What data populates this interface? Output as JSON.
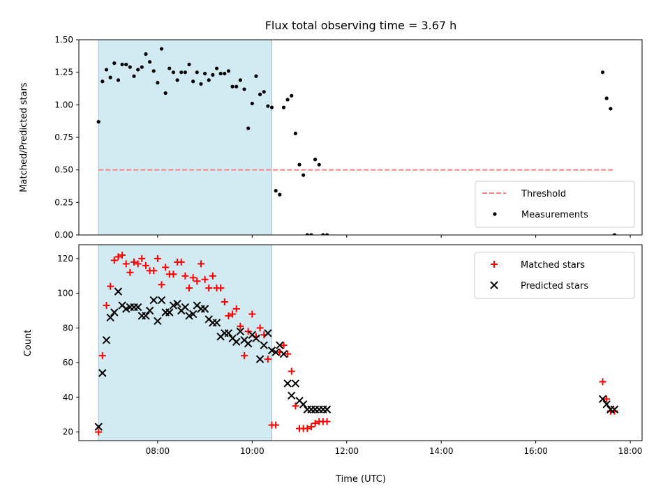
{
  "chart_data": [
    {
      "type": "scatter",
      "title": "Flux total observing time = 3.67 h",
      "xlabel": "",
      "ylabel": "Matched/Predicted stars",
      "ylim": [
        0,
        1.5
      ],
      "yticks": [
        "0.00",
        "0.25",
        "0.50",
        "0.75",
        "1.00",
        "1.25",
        "1.50"
      ],
      "xlim": [
        "06:20",
        "18:15"
      ],
      "shaded_interval": {
        "start": "06:45",
        "end": "10:25",
        "color": "#add8e6"
      },
      "threshold": {
        "name": "Threshold",
        "value": 0.5,
        "from": "06:45",
        "to": "17:40",
        "color": "#ff7f7f",
        "style": "dashed"
      },
      "legend": {
        "position": "lower right",
        "entries": [
          "Threshold",
          "Measurements"
        ]
      },
      "series": [
        {
          "name": "Measurements",
          "color": "#000000",
          "marker": "dot",
          "x": [
            "06:45",
            "06:50",
            "06:55",
            "07:00",
            "07:05",
            "07:10",
            "07:15",
            "07:20",
            "07:25",
            "07:30",
            "07:35",
            "07:40",
            "07:45",
            "07:50",
            "07:55",
            "08:00",
            "08:05",
            "08:10",
            "08:15",
            "08:20",
            "08:25",
            "08:30",
            "08:35",
            "08:40",
            "08:45",
            "08:50",
            "08:55",
            "09:00",
            "09:05",
            "09:10",
            "09:15",
            "09:20",
            "09:25",
            "09:30",
            "09:35",
            "09:40",
            "09:45",
            "09:50",
            "09:55",
            "10:00",
            "10:05",
            "10:10",
            "10:15",
            "10:20",
            "10:25",
            "10:30",
            "10:35",
            "10:40",
            "10:45",
            "10:50",
            "10:55",
            "11:00",
            "11:05",
            "11:10",
            "11:15",
            "11:20",
            "11:25",
            "11:30",
            "11:35",
            "17:25",
            "17:30",
            "17:35",
            "17:40"
          ],
          "y": [
            0.87,
            1.18,
            1.27,
            1.21,
            1.32,
            1.19,
            1.31,
            1.31,
            1.29,
            1.22,
            1.27,
            1.29,
            1.39,
            1.33,
            1.26,
            1.17,
            1.43,
            1.09,
            1.28,
            1.25,
            1.19,
            1.25,
            1.25,
            1.31,
            1.18,
            1.25,
            1.16,
            1.24,
            1.19,
            1.23,
            1.28,
            1.24,
            1.24,
            1.26,
            1.14,
            1.14,
            1.19,
            1.12,
            0.82,
            1.01,
            1.22,
            1.08,
            1.1,
            0.99,
            0.98,
            0.34,
            0.31,
            0.98,
            1.04,
            1.07,
            0.78,
            0.54,
            0.46,
            0.0,
            0.0,
            0.58,
            0.54,
            0.0,
            0.0,
            1.25,
            1.05,
            0.97,
            0.0
          ]
        }
      ]
    },
    {
      "type": "scatter",
      "title": "",
      "xlabel": "Time (UTC)",
      "ylabel": "Count",
      "ylim": [
        15,
        128
      ],
      "yticks": [
        20,
        40,
        60,
        80,
        100,
        120
      ],
      "xticks": [
        "08:00",
        "10:00",
        "12:00",
        "14:00",
        "16:00",
        "18:00"
      ],
      "xlim": [
        "06:20",
        "18:15"
      ],
      "shaded_interval": {
        "start": "06:45",
        "end": "10:25",
        "color": "#add8e6"
      },
      "legend": {
        "position": "upper right",
        "entries": [
          "Matched stars",
          "Predicted stars"
        ]
      },
      "series": [
        {
          "name": "Matched stars",
          "color": "#ff0000",
          "marker": "plus",
          "x": [
            "06:45",
            "06:50",
            "06:55",
            "07:00",
            "07:05",
            "07:10",
            "07:15",
            "07:20",
            "07:25",
            "07:30",
            "07:35",
            "07:40",
            "07:45",
            "07:50",
            "07:55",
            "08:00",
            "08:05",
            "08:10",
            "08:15",
            "08:20",
            "08:25",
            "08:30",
            "08:35",
            "08:40",
            "08:45",
            "08:50",
            "08:55",
            "09:00",
            "09:05",
            "09:10",
            "09:15",
            "09:20",
            "09:25",
            "09:30",
            "09:35",
            "09:40",
            "09:45",
            "09:50",
            "09:55",
            "10:00",
            "10:05",
            "10:10",
            "10:15",
            "10:20",
            "10:25",
            "10:30",
            "10:35",
            "10:40",
            "10:45",
            "10:50",
            "10:55",
            "11:00",
            "11:05",
            "11:10",
            "11:15",
            "11:20",
            "11:25",
            "11:30",
            "11:35",
            "17:25",
            "17:30",
            "17:35",
            "17:40"
          ],
          "y": [
            20,
            64,
            93,
            104,
            119,
            121,
            122,
            117,
            112,
            118,
            117,
            120,
            116,
            113,
            113,
            120,
            105,
            115,
            111,
            111,
            118,
            118,
            110,
            103,
            109,
            107,
            117,
            108,
            103,
            110,
            103,
            103,
            95,
            87,
            88,
            91,
            81,
            64,
            78,
            88,
            75,
            80,
            76,
            62,
            24,
            24,
            66,
            70,
            65,
            55,
            35,
            22,
            22,
            22,
            23,
            25,
            26,
            26,
            26,
            49,
            39,
            32,
            32
          ]
        },
        {
          "name": "Predicted stars",
          "color": "#000000",
          "marker": "x",
          "x": [
            "06:45",
            "06:50",
            "06:55",
            "07:00",
            "07:05",
            "07:10",
            "07:15",
            "07:20",
            "07:25",
            "07:30",
            "07:35",
            "07:40",
            "07:45",
            "07:50",
            "07:55",
            "08:00",
            "08:05",
            "08:10",
            "08:15",
            "08:20",
            "08:25",
            "08:30",
            "08:35",
            "08:40",
            "08:45",
            "08:50",
            "08:55",
            "09:00",
            "09:05",
            "09:10",
            "09:15",
            "09:20",
            "09:25",
            "09:30",
            "09:35",
            "09:40",
            "09:45",
            "09:50",
            "09:55",
            "10:00",
            "10:05",
            "10:10",
            "10:15",
            "10:20",
            "10:25",
            "10:30",
            "10:35",
            "10:40",
            "10:45",
            "10:50",
            "10:55",
            "11:00",
            "11:05",
            "11:10",
            "11:15",
            "11:20",
            "11:25",
            "11:30",
            "11:35",
            "17:25",
            "17:30",
            "17:35",
            "17:40"
          ],
          "y": [
            23,
            54,
            73,
            86,
            89,
            101,
            93,
            91,
            92,
            92,
            92,
            87,
            87,
            90,
            96,
            84,
            96,
            89,
            89,
            93,
            94,
            90,
            92,
            87,
            88,
            93,
            91,
            91,
            85,
            83,
            83,
            75,
            77,
            77,
            74,
            72,
            78,
            73,
            71,
            76,
            74,
            62,
            70,
            77,
            67,
            66,
            70,
            65,
            48,
            41,
            48,
            38,
            36,
            33,
            33,
            33,
            33,
            33,
            33,
            39,
            36,
            33,
            33
          ]
        }
      ]
    }
  ]
}
